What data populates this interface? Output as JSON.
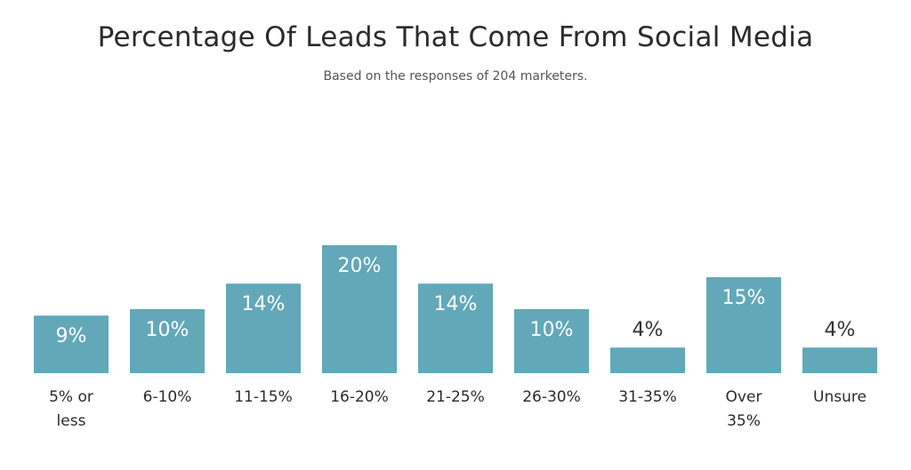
{
  "chart_data": {
    "type": "bar",
    "title": "Percentage Of Leads That Come From Social Media",
    "subtitle": "Based on the responses of 204 marketers.",
    "categories": [
      "5% or less",
      "6-10%",
      "11-15%",
      "16-20%",
      "21-25%",
      "26-30%",
      "31-35%",
      "Over 35%",
      "Unsure"
    ],
    "category_lines": [
      [
        "5% or",
        "less"
      ],
      [
        "6-10%"
      ],
      [
        "11-15%"
      ],
      [
        "16-20%"
      ],
      [
        "21-25%"
      ],
      [
        "26-30%"
      ],
      [
        "31-35%"
      ],
      [
        "Over",
        "35%"
      ],
      [
        "Unsure"
      ]
    ],
    "values": [
      9,
      10,
      14,
      20,
      14,
      10,
      4,
      15,
      4
    ],
    "data_labels": [
      "9%",
      "10%",
      "14%",
      "20%",
      "14%",
      "10%",
      "4%",
      "15%",
      "4%"
    ],
    "ylim": [
      0,
      20
    ],
    "grid": false,
    "bar_color": "#62a8b9",
    "label_in_bar_color": "#ffffff",
    "label_above_bar_color": "#333333",
    "xlabel": "",
    "ylabel": ""
  }
}
